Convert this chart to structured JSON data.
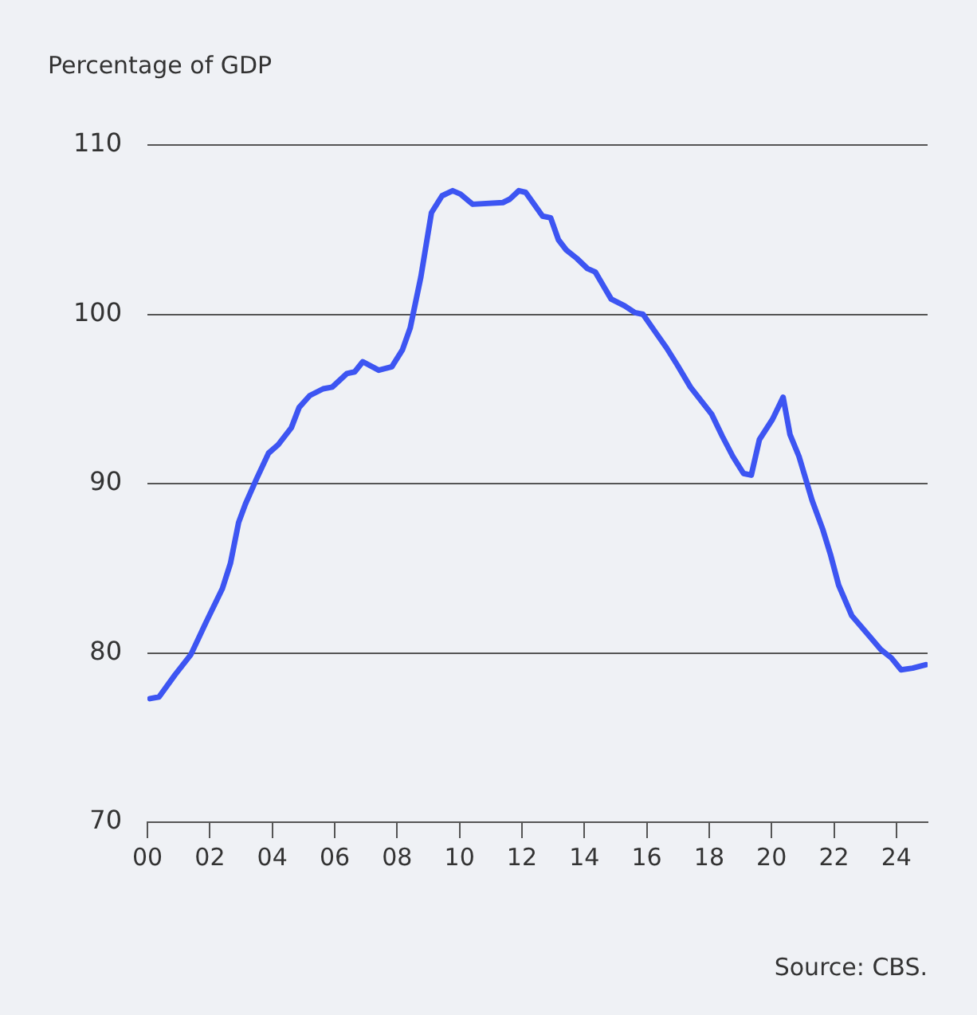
{
  "chart_data": {
    "type": "line",
    "title": "Percentage of GDP",
    "annotations": [
      "Source: CBS."
    ],
    "x": [
      0.08,
      0.37,
      0.88,
      1.39,
      1.9,
      2.4,
      2.66,
      2.92,
      3.14,
      3.5,
      3.88,
      4.19,
      4.61,
      4.86,
      5.2,
      5.63,
      5.92,
      6.39,
      6.64,
      6.9,
      7.41,
      7.83,
      8.17,
      8.42,
      8.76,
      9.1,
      9.44,
      9.78,
      10.03,
      10.42,
      11.39,
      11.61,
      11.9,
      12.12,
      12.66,
      12.92,
      13.17,
      13.42,
      13.76,
      14.1,
      14.35,
      14.86,
      15.29,
      15.62,
      15.88,
      16.22,
      16.64,
      16.98,
      17.4,
      17.74,
      18.08,
      18.42,
      18.76,
      19.1,
      19.35,
      19.61,
      20.03,
      20.37,
      20.59,
      20.88,
      21.3,
      21.64,
      21.89,
      22.15,
      22.57,
      23.13,
      23.5,
      23.84,
      24.15,
      24.52,
      24.94
    ],
    "series": [
      {
        "color": "#3d55f2",
        "values": [
          77.3,
          77.4,
          78.7,
          79.9,
          81.9,
          83.8,
          85.3,
          87.7,
          88.8,
          90.3,
          91.8,
          92.3,
          93.3,
          94.5,
          95.2,
          95.6,
          95.7,
          96.5,
          96.6,
          97.2,
          96.7,
          96.9,
          97.9,
          99.2,
          102.2,
          106.0,
          107.0,
          107.3,
          107.1,
          106.5,
          106.6,
          106.8,
          107.3,
          107.2,
          105.8,
          105.7,
          104.4,
          103.8,
          103.3,
          102.7,
          102.5,
          100.9,
          100.5,
          100.1,
          100.0,
          99.1,
          98.0,
          97.0,
          95.7,
          94.9,
          94.1,
          92.8,
          91.6,
          90.6,
          90.5,
          92.6,
          93.8,
          95.1,
          92.9,
          91.6,
          89.0,
          87.3,
          85.8,
          84.0,
          82.2,
          81.0,
          80.2,
          79.7,
          79.0,
          79.1,
          79.3
        ]
      }
    ],
    "xlim": [
      0,
      25
    ],
    "xticks": [
      {
        "value": 0,
        "label": "00"
      },
      {
        "value": 2,
        "label": "02"
      },
      {
        "value": 4,
        "label": "04"
      },
      {
        "value": 6,
        "label": "06"
      },
      {
        "value": 8,
        "label": "08"
      },
      {
        "value": 10,
        "label": "10"
      },
      {
        "value": 12,
        "label": "12"
      },
      {
        "value": 14,
        "label": "14"
      },
      {
        "value": 16,
        "label": "16"
      },
      {
        "value": 18,
        "label": "18"
      },
      {
        "value": 20,
        "label": "20"
      },
      {
        "value": 22,
        "label": "22"
      },
      {
        "value": 24,
        "label": "24"
      }
    ],
    "ylim": [
      70,
      110
    ],
    "yticks": [
      70,
      80,
      90,
      100,
      110
    ],
    "grid": "y",
    "legend": false,
    "marker": "none",
    "line_style": "solid"
  }
}
